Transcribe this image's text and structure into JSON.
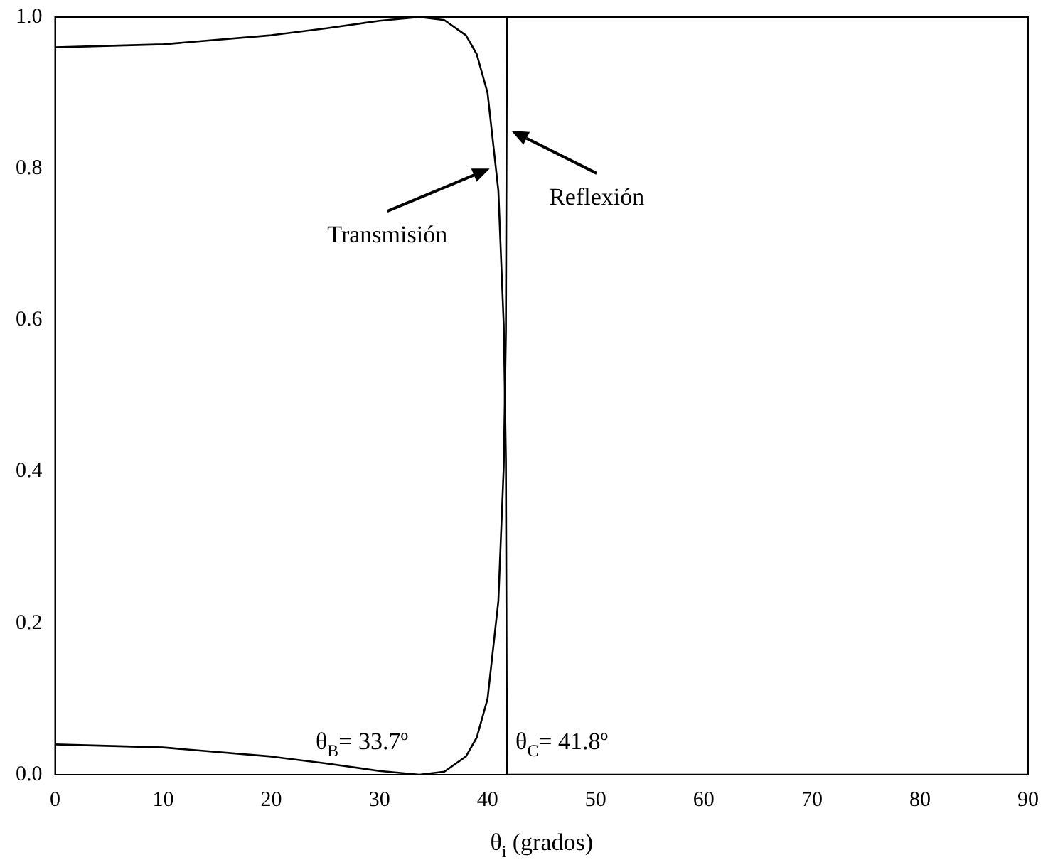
{
  "chart_data": {
    "type": "line",
    "xlabel": "θ$_{i}$ (grados)",
    "xlim": [
      0,
      90
    ],
    "xticks": [
      0,
      10,
      20,
      30,
      40,
      50,
      60,
      70,
      80,
      90
    ],
    "ylim": [
      0,
      1
    ],
    "yticks": [
      {
        "value": 0,
        "label": "0.0"
      },
      {
        "value": 0.2,
        "label": "0.2"
      },
      {
        "value": 0.4,
        "label": "0.4"
      },
      {
        "value": 0.6,
        "label": "0.6"
      },
      {
        "value": 0.8,
        "label": "0.8"
      },
      {
        "value": 1,
        "label": "1.0"
      }
    ],
    "grid": false,
    "legend": false,
    "marker": "none",
    "line_style": "solid",
    "series": [
      {
        "color": "#000000",
        "x": [
          0,
          10,
          20,
          25,
          30,
          33.7,
          36,
          38,
          39,
          40,
          41,
          41.5,
          41.7,
          41.8,
          90
        ],
        "values": [
          0.96,
          0.964,
          0.976,
          0.985,
          0.995,
          1,
          0.996,
          0.976,
          0.951,
          0.9,
          0.771,
          0.593,
          0.415,
          0,
          0
        ]
      },
      {
        "color": "#000000",
        "x": [
          0,
          10,
          20,
          25,
          30,
          33.7,
          36,
          38,
          39,
          40,
          41,
          41.5,
          41.7,
          41.8,
          90
        ],
        "values": [
          0.04,
          0.036,
          0.024,
          0.015,
          0.005,
          0,
          0.004,
          0.024,
          0.049,
          0.1,
          0.229,
          0.407,
          0.585,
          1,
          1
        ]
      }
    ],
    "annotations": [
      {
        "text": "Transmisión",
        "x": 40.2,
        "y": 0.8
      },
      {
        "text": "Reflexión",
        "x": 42.2,
        "y": 0.85
      },
      {
        "text": "θ$_{B}$= 33.7º",
        "x": 33.7,
        "y": 0
      },
      {
        "text": "θ$_{C}$= 41.8º",
        "x": 41.8,
        "y": 0
      }
    ]
  }
}
